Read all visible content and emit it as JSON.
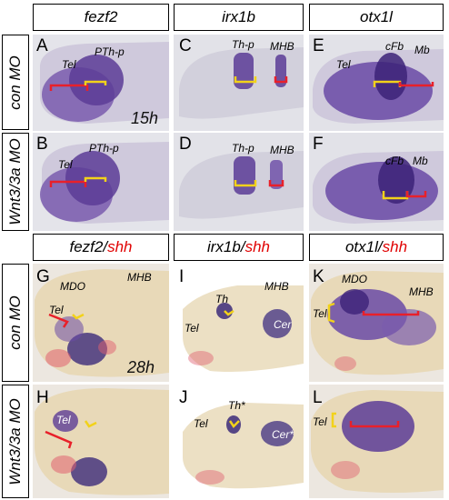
{
  "columns_top": [
    "fezf2",
    "irx1b",
    "otx1l"
  ],
  "columns_bottom": [
    {
      "gene": "fezf2",
      "sep": "/",
      "second": "shh"
    },
    {
      "gene": "irx1b",
      "sep": "/",
      "second": "shh"
    },
    {
      "gene": "otx1l",
      "sep": "/",
      "second": "shh"
    }
  ],
  "rows": [
    "con MO",
    "Wnt3/3a MO",
    "con MO",
    "Wnt3/3a MO"
  ],
  "times": {
    "top": "15h",
    "bottom": "28h"
  },
  "panels": {
    "A": {
      "letter": "A",
      "labels": [
        "Tel",
        "PTh-p"
      ]
    },
    "B": {
      "letter": "B",
      "labels": [
        "Tel",
        "PTh-p"
      ]
    },
    "C": {
      "letter": "C",
      "labels": [
        "Th-p",
        "MHB"
      ]
    },
    "D": {
      "letter": "D",
      "labels": [
        "Th-p",
        "MHB"
      ]
    },
    "E": {
      "letter": "E",
      "labels": [
        "Tel",
        "cFb",
        "Mb"
      ]
    },
    "F": {
      "letter": "F",
      "labels": [
        "cFb",
        "Mb"
      ]
    },
    "G": {
      "letter": "G",
      "labels": [
        "MDO",
        "MHB",
        "Tel"
      ]
    },
    "H": {
      "letter": "H",
      "labels": [
        "Tel"
      ]
    },
    "I": {
      "letter": "I",
      "labels": [
        "Th",
        "MHB",
        "Tel",
        "Cer"
      ]
    },
    "J": {
      "letter": "J",
      "labels": [
        "Th*",
        "Tel",
        "Cer*"
      ]
    },
    "K": {
      "letter": "K",
      "labels": [
        "MDO",
        "MHB",
        "Tel"
      ]
    },
    "L": {
      "letter": "L",
      "labels": [
        "Tel"
      ]
    }
  },
  "colors": {
    "red_bracket": "#e8202a",
    "yellow_bracket": "#f2d21a",
    "stain_purple": "#4a2a8a",
    "stain_red": "#d8505a"
  }
}
